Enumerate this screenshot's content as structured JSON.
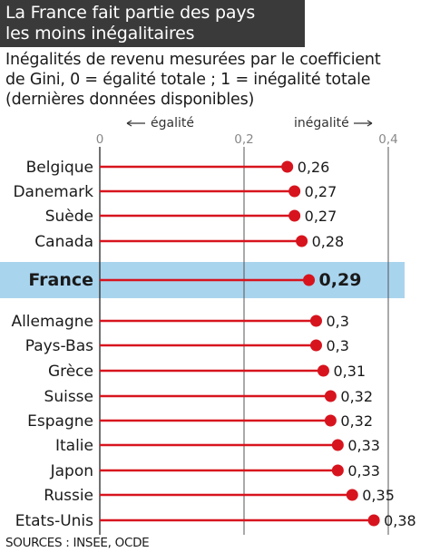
{
  "title": {
    "line1": "La France fait partie des pays",
    "line2": "les moins inégalitaires"
  },
  "subtitle": {
    "line1": "Inégalités de revenu mesurées par le coefficient",
    "line2": "de Gini, 0 = égalité totale ; 1 = inégalité totale",
    "line3": "(dernières données disponibles)"
  },
  "source": "SOURCES : INSEE, OCDE",
  "chart_data": {
    "type": "lollipop",
    "axis": {
      "ticks": [
        "0",
        "0,2",
        "0,4"
      ],
      "tick_values": [
        0,
        0.2,
        0.4
      ],
      "left_label": "égalité",
      "right_label": "inégalité",
      "xlim": [
        0,
        0.4
      ],
      "gridlines": true
    },
    "categories": [
      "Belgique",
      "Danemark",
      "Suède",
      "Canada",
      "France",
      "Allemagne",
      "Pays-Bas",
      "Grèce",
      "Suisse",
      "Espagne",
      "Italie",
      "Japon",
      "Russie",
      "Etats-Unis"
    ],
    "values": [
      0.26,
      0.27,
      0.27,
      0.28,
      0.29,
      0.3,
      0.3,
      0.31,
      0.32,
      0.32,
      0.33,
      0.33,
      0.35,
      0.38
    ],
    "value_labels": [
      "0,26",
      "0,27",
      "0,27",
      "0,28",
      "0,29",
      "0,3",
      "0,3",
      "0,31",
      "0,32",
      "0,32",
      "0,33",
      "0,33",
      "0,35",
      "0,38"
    ],
    "highlight": "France",
    "colors": {
      "marker": "#d7141e",
      "highlight_band": "#a9d4ee",
      "title_band": "#3a3a3a",
      "grid": "#555555",
      "axis_gray": "#888888"
    }
  }
}
